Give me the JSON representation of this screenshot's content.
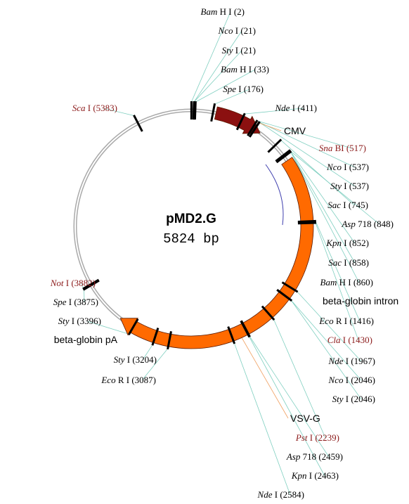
{
  "plasmid": {
    "name": "pMD2.G",
    "size_label": "5824 bp",
    "length_bp": 5824
  },
  "colors": {
    "backbone": "#a9a9a9",
    "unique_site_text": "#8b1a1a",
    "site_leader": "#7fcfc0",
    "cmv_arrow": "#8b1010",
    "vsvg_arrow": "#ff6a00",
    "tick": "#000000",
    "inner_arc": "#3f3fae"
  },
  "features": [
    {
      "id": "cmv",
      "label": "CMV",
      "start_bp": 200,
      "end_bp": 590,
      "direction": "cw",
      "color": "#8b1010"
    },
    {
      "id": "vsvg",
      "label": "VSV-G",
      "start_bp": 900,
      "end_bp": 3520,
      "direction": "cw",
      "color": "#ff6a00"
    },
    {
      "id": "betaglobin-intron",
      "label": "beta-globin intron",
      "pos_bp": 880
    },
    {
      "id": "betaglobin-pa",
      "label": "beta-globin pA",
      "pos_bp": 3420
    }
  ],
  "sites": [
    {
      "enzyme": "Bam",
      "suffix": "H I",
      "pos": "(2)",
      "pos_bp": 2,
      "unique": false
    },
    {
      "enzyme": "Nco",
      "suffix": "I",
      "pos": "(21)",
      "pos_bp": 21,
      "unique": false
    },
    {
      "enzyme": "Sty",
      "suffix": "I",
      "pos": "(21)",
      "pos_bp": 21,
      "unique": false
    },
    {
      "enzyme": "Bam",
      "suffix": "H I",
      "pos": "(33)",
      "pos_bp": 33,
      "unique": false
    },
    {
      "enzyme": "Spe",
      "suffix": "I",
      "pos": "(176)",
      "pos_bp": 176,
      "unique": false
    },
    {
      "enzyme": "Nde",
      "suffix": "I",
      "pos": "(411)",
      "pos_bp": 411,
      "unique": false
    },
    {
      "enzyme": "Sna",
      "suffix": "BI",
      "pos": "(517)",
      "pos_bp": 517,
      "unique": true
    },
    {
      "enzyme": "Nco",
      "suffix": "I",
      "pos": "(537)",
      "pos_bp": 537,
      "unique": false
    },
    {
      "enzyme": "Sty",
      "suffix": "I",
      "pos": "(537)",
      "pos_bp": 537,
      "unique": false
    },
    {
      "enzyme": "Sac",
      "suffix": "I",
      "pos": "(745)",
      "pos_bp": 745,
      "unique": false
    },
    {
      "enzyme": "Asp",
      "suffix": "718",
      "pos": "(848)",
      "pos_bp": 848,
      "unique": false
    },
    {
      "enzyme": "Kpn",
      "suffix": "I",
      "pos": "(852)",
      "pos_bp": 852,
      "unique": false
    },
    {
      "enzyme": "Sac",
      "suffix": "I",
      "pos": "(858)",
      "pos_bp": 858,
      "unique": false
    },
    {
      "enzyme": "Bam",
      "suffix": "H I",
      "pos": "(860)",
      "pos_bp": 860,
      "unique": false
    },
    {
      "enzyme": "Eco",
      "suffix": "R I",
      "pos": "(1416)",
      "pos_bp": 1416,
      "unique": false
    },
    {
      "enzyme": "Cla",
      "suffix": "I",
      "pos": "(1430)",
      "pos_bp": 1430,
      "unique": true
    },
    {
      "enzyme": "Nde",
      "suffix": "I",
      "pos": "(1967)",
      "pos_bp": 1967,
      "unique": false
    },
    {
      "enzyme": "Nco",
      "suffix": "I",
      "pos": "(2046)",
      "pos_bp": 2046,
      "unique": false
    },
    {
      "enzyme": "Sty",
      "suffix": "I",
      "pos": "(2046)",
      "pos_bp": 2046,
      "unique": false
    },
    {
      "enzyme": "Pst",
      "suffix": "I",
      "pos": "(2239)",
      "pos_bp": 2239,
      "unique": true
    },
    {
      "enzyme": "Asp",
      "suffix": "718",
      "pos": "(2459)",
      "pos_bp": 2459,
      "unique": false
    },
    {
      "enzyme": "Kpn",
      "suffix": "I",
      "pos": "(2463)",
      "pos_bp": 2463,
      "unique": false
    },
    {
      "enzyme": "Nde",
      "suffix": "I",
      "pos": "(2584)",
      "pos_bp": 2584,
      "unique": false
    },
    {
      "enzyme": "Eco",
      "suffix": "R I",
      "pos": "(3087)",
      "pos_bp": 3087,
      "unique": false
    },
    {
      "enzyme": "Sty",
      "suffix": "I",
      "pos": "(3204)",
      "pos_bp": 3204,
      "unique": false
    },
    {
      "enzyme": "Sty",
      "suffix": "I",
      "pos": "(3396)",
      "pos_bp": 3396,
      "unique": false
    },
    {
      "enzyme": "Spe",
      "suffix": "I",
      "pos": "(3875)",
      "pos_bp": 3875,
      "unique": false
    },
    {
      "enzyme": "Not",
      "suffix": "I",
      "pos": "(3882)",
      "pos_bp": 3882,
      "unique": true
    },
    {
      "enzyme": "Sca",
      "suffix": "I",
      "pos": "(5383)",
      "pos_bp": 5383,
      "unique": true
    }
  ]
}
